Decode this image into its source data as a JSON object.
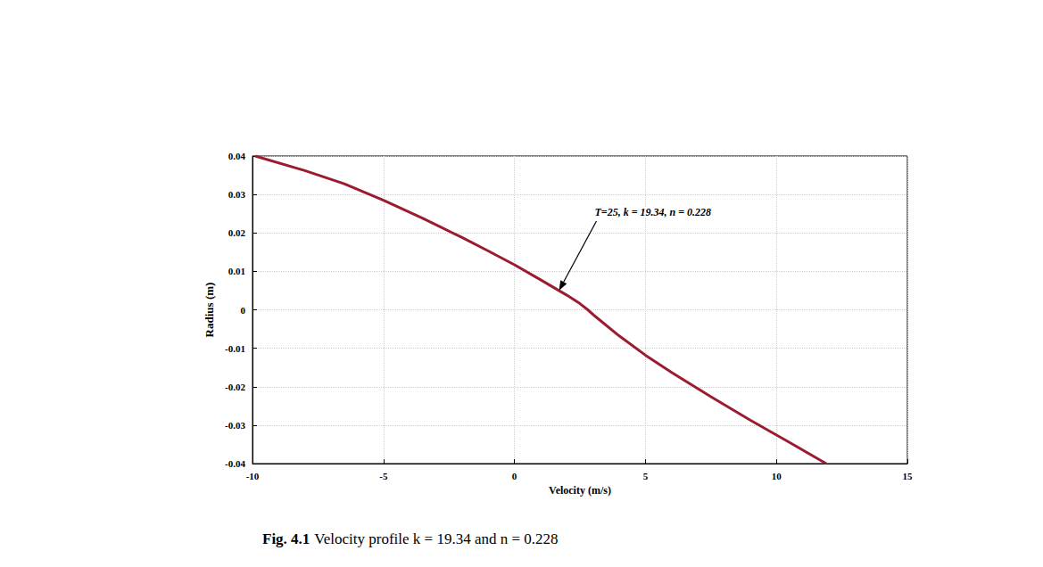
{
  "chart_data": {
    "type": "line",
    "title": "Fig. 4.1 Velocity profile k = 19.34 and n = 0.228",
    "x_label": "Velocity (m/s)",
    "y_label": "Radius (m)",
    "x": [
      -9.9,
      -8,
      -6.5,
      -5,
      -3.5,
      -2,
      -1,
      0,
      1,
      2,
      2.5,
      2.8,
      3.1,
      4,
      5,
      6,
      7.5,
      9,
      10.5,
      11.9
    ],
    "values": [
      0.04,
      0.0362,
      0.0328,
      0.0285,
      0.0238,
      0.0188,
      0.0153,
      0.0117,
      0.0078,
      0.0038,
      0.0016,
      0,
      -0.0018,
      -0.0068,
      -0.0118,
      -0.0163,
      -0.0226,
      -0.0287,
      -0.0345,
      -0.04
    ],
    "color": "#9b1b30",
    "xlim": [
      -10,
      15
    ],
    "xticks": [
      -10,
      -5,
      0,
      5,
      10,
      15
    ],
    "ylim": [
      -0.04,
      0.04
    ],
    "yticks": [
      -0.04,
      -0.03,
      -0.02,
      -0.01,
      0,
      0.01,
      0.02,
      0.03,
      0.04
    ],
    "grid": true,
    "annotations": [
      {
        "text": "T=25, k = 19.34, n = 0.228",
        "x": 1.7,
        "y": 0.005
      }
    ]
  }
}
